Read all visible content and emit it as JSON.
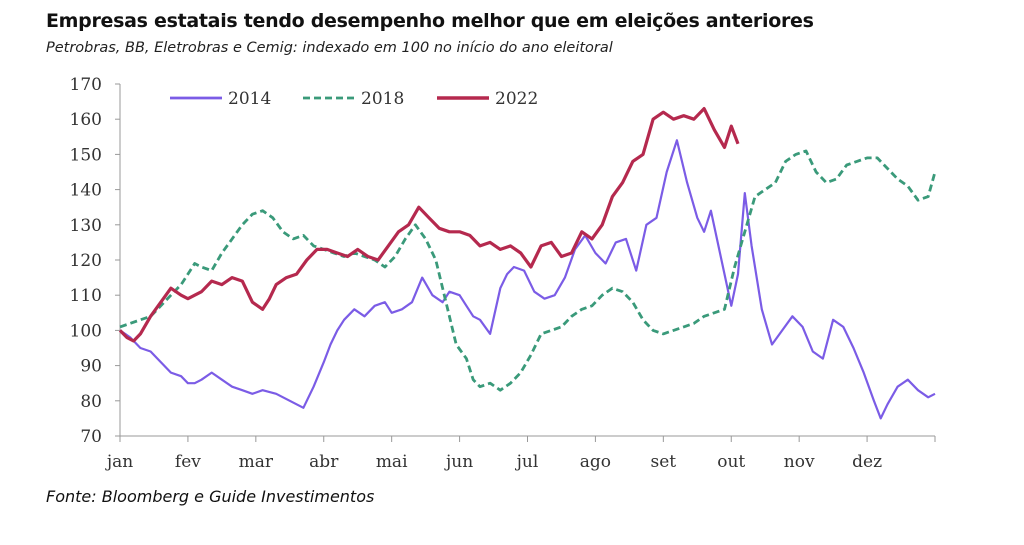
{
  "header": {
    "title": "Empresas estatais tendo desempenho melhor que em eleições anteriores",
    "subtitle": "Petrobras, BB, Eletrobras e Cemig: indexado em 100 no início do ano eleitoral"
  },
  "footer": {
    "source": "Fonte:  Bloomberg e Guide Investimentos"
  },
  "chart_data": {
    "type": "line",
    "title": "Empresas estatais tendo desempenho melhor que em eleições anteriores",
    "subtitle": "Petrobras, BB, Eletrobras e Cemig: indexado em 100 no início do ano eleitoral",
    "xlabel": "",
    "ylabel": "",
    "x_ticks": [
      "jan",
      "fev",
      "mar",
      "abr",
      "mai",
      "jun",
      "jul",
      "ago",
      "set",
      "out",
      "nov",
      "dez"
    ],
    "y_ticks": [
      70,
      80,
      90,
      100,
      110,
      120,
      130,
      140,
      150,
      160,
      170
    ],
    "xlim": [
      0,
      12
    ],
    "ylim": [
      70,
      170
    ],
    "grid": false,
    "legend_position": "top-left",
    "x_unit": "months since start of election year (0 = 1 jan)",
    "series": [
      {
        "name": "2014",
        "color": "#7b5ce6",
        "style": "solid",
        "x": [
          0,
          0.15,
          0.3,
          0.45,
          0.6,
          0.75,
          0.9,
          1.0,
          1.1,
          1.2,
          1.35,
          1.5,
          1.65,
          1.8,
          1.95,
          2.1,
          2.3,
          2.5,
          2.7,
          2.85,
          3.0,
          3.1,
          3.2,
          3.3,
          3.45,
          3.6,
          3.75,
          3.9,
          4.0,
          4.15,
          4.3,
          4.45,
          4.6,
          4.75,
          4.85,
          5.0,
          5.1,
          5.2,
          5.3,
          5.45,
          5.6,
          5.7,
          5.8,
          5.95,
          6.1,
          6.25,
          6.4,
          6.55,
          6.7,
          6.85,
          7.0,
          7.15,
          7.3,
          7.45,
          7.6,
          7.75,
          7.9,
          8.05,
          8.2,
          8.35,
          8.5,
          8.6,
          8.7,
          8.8,
          8.9,
          9.0,
          9.1,
          9.2,
          9.3,
          9.45,
          9.6,
          9.75,
          9.9,
          10.05,
          10.2,
          10.35,
          10.5,
          10.65,
          10.8,
          10.95,
          11.1,
          11.2,
          11.3,
          11.45,
          11.6,
          11.75,
          11.9,
          12.0
        ],
        "values": [
          100,
          98,
          95,
          94,
          91,
          88,
          87,
          85,
          85,
          86,
          88,
          86,
          84,
          83,
          82,
          83,
          82,
          80,
          78,
          84,
          91,
          96,
          100,
          103,
          106,
          104,
          107,
          108,
          105,
          106,
          108,
          115,
          110,
          108,
          111,
          110,
          107,
          104,
          103,
          99,
          112,
          116,
          118,
          117,
          111,
          109,
          110,
          115,
          123,
          127,
          122,
          119,
          125,
          126,
          117,
          130,
          132,
          145,
          154,
          142,
          132,
          128,
          134,
          125,
          116,
          107,
          116,
          139,
          124,
          106,
          96,
          100,
          104,
          101,
          94,
          92,
          103,
          101,
          95,
          88,
          80,
          75,
          79,
          84,
          86,
          83,
          81,
          82
        ]
      },
      {
        "name": "2018",
        "color": "#3a9a7a",
        "style": "dashed",
        "x": [
          0,
          0.15,
          0.3,
          0.45,
          0.6,
          0.75,
          0.9,
          1.0,
          1.1,
          1.2,
          1.35,
          1.5,
          1.65,
          1.8,
          1.95,
          2.1,
          2.25,
          2.4,
          2.55,
          2.7,
          2.85,
          3.0,
          3.15,
          3.3,
          3.45,
          3.6,
          3.75,
          3.9,
          4.05,
          4.2,
          4.35,
          4.5,
          4.65,
          4.8,
          4.95,
          5.1,
          5.2,
          5.3,
          5.45,
          5.6,
          5.75,
          5.9,
          6.05,
          6.2,
          6.35,
          6.5,
          6.65,
          6.8,
          6.95,
          7.1,
          7.25,
          7.4,
          7.55,
          7.7,
          7.85,
          8.0,
          8.15,
          8.3,
          8.45,
          8.6,
          8.75,
          8.9,
          9.05,
          9.2,
          9.35,
          9.5,
          9.65,
          9.8,
          9.95,
          10.1,
          10.25,
          10.4,
          10.55,
          10.7,
          10.85,
          11.0,
          11.15,
          11.3,
          11.45,
          11.6,
          11.75,
          11.9,
          12.0
        ],
        "values": [
          101,
          102,
          103,
          104,
          107,
          110,
          113,
          116,
          119,
          118,
          117,
          122,
          126,
          130,
          133,
          134,
          132,
          128,
          126,
          127,
          124,
          123,
          122,
          121,
          122,
          121,
          120,
          118,
          121,
          126,
          130,
          126,
          120,
          108,
          96,
          92,
          86,
          84,
          85,
          83,
          85,
          88,
          93,
          99,
          100,
          101,
          104,
          106,
          107,
          110,
          112,
          111,
          108,
          103,
          100,
          99,
          100,
          101,
          102,
          104,
          105,
          106,
          118,
          128,
          138,
          140,
          142,
          148,
          150,
          151,
          145,
          142,
          143,
          147,
          148,
          149,
          149,
          146,
          143,
          141,
          137,
          138,
          145
        ]
      },
      {
        "name": "2022",
        "color": "#b5294e",
        "style": "solid",
        "x": [
          0,
          0.1,
          0.2,
          0.3,
          0.45,
          0.6,
          0.75,
          0.9,
          1.0,
          1.1,
          1.2,
          1.35,
          1.5,
          1.65,
          1.8,
          1.95,
          2.1,
          2.2,
          2.3,
          2.45,
          2.6,
          2.75,
          2.9,
          3.05,
          3.2,
          3.35,
          3.5,
          3.65,
          3.8,
          3.95,
          4.1,
          4.25,
          4.4,
          4.55,
          4.7,
          4.85,
          5.0,
          5.15,
          5.3,
          5.45,
          5.6,
          5.75,
          5.9,
          6.05,
          6.2,
          6.35,
          6.5,
          6.65,
          6.8,
          6.95,
          7.1,
          7.25,
          7.4,
          7.55,
          7.7,
          7.85,
          8.0,
          8.15,
          8.3,
          8.45,
          8.6,
          8.75,
          8.9,
          9.0,
          9.1
        ],
        "values": [
          100,
          98,
          97,
          99,
          104,
          108,
          112,
          110,
          109,
          110,
          111,
          114,
          113,
          115,
          114,
          108,
          106,
          109,
          113,
          115,
          116,
          120,
          123,
          123,
          122,
          121,
          123,
          121,
          120,
          124,
          128,
          130,
          135,
          132,
          129,
          128,
          128,
          127,
          124,
          125,
          123,
          124,
          122,
          118,
          124,
          125,
          121,
          122,
          128,
          126,
          130,
          138,
          142,
          148,
          150,
          160,
          162,
          160,
          161,
          160,
          163,
          157,
          152,
          158,
          153
        ]
      }
    ]
  }
}
